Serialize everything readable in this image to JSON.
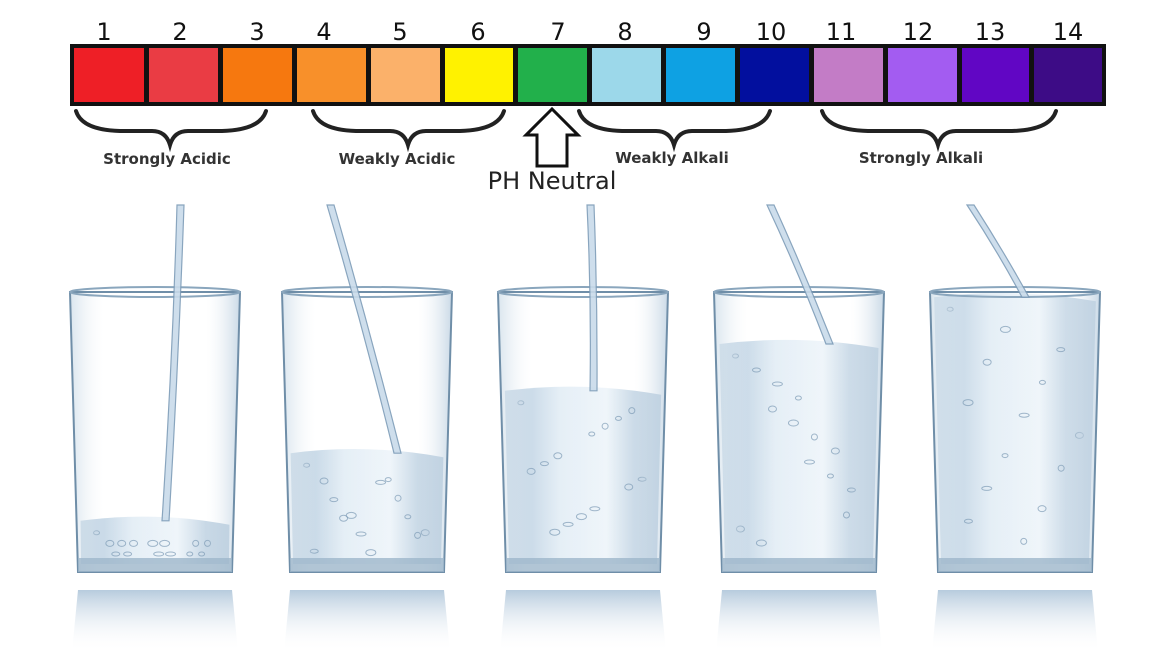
{
  "scale": {
    "numbers": [
      "1",
      "2",
      "3",
      "4",
      "5",
      "6",
      "7",
      "8",
      "9",
      "10",
      "11",
      "12",
      "13",
      "14"
    ],
    "colors": [
      "#ee1f26",
      "#ea3c44",
      "#f6780f",
      "#f8902a",
      "#fbb16a",
      "#fff200",
      "#22b04b",
      "#9cd8ea",
      "#0ea1e3",
      "#020f9e",
      "#c37cc6",
      "#a35cf1",
      "#6106c4",
      "#3d0c86"
    ]
  },
  "groups": {
    "strongly_acidic": "Strongly Acidic",
    "weakly_acidic": "Weakly Acidic",
    "weakly_alkali": "Weakly Alkali",
    "strongly_alkali": "Strongly Alkali"
  },
  "neutral_label": "PH Neutral",
  "glasses": {
    "count": 5,
    "fill_levels": [
      0.12,
      0.38,
      0.62,
      0.8,
      0.98
    ]
  },
  "colors": {
    "water": "#bcd3e6",
    "glass_edge": "#6f8ea8",
    "text": "#222222"
  }
}
